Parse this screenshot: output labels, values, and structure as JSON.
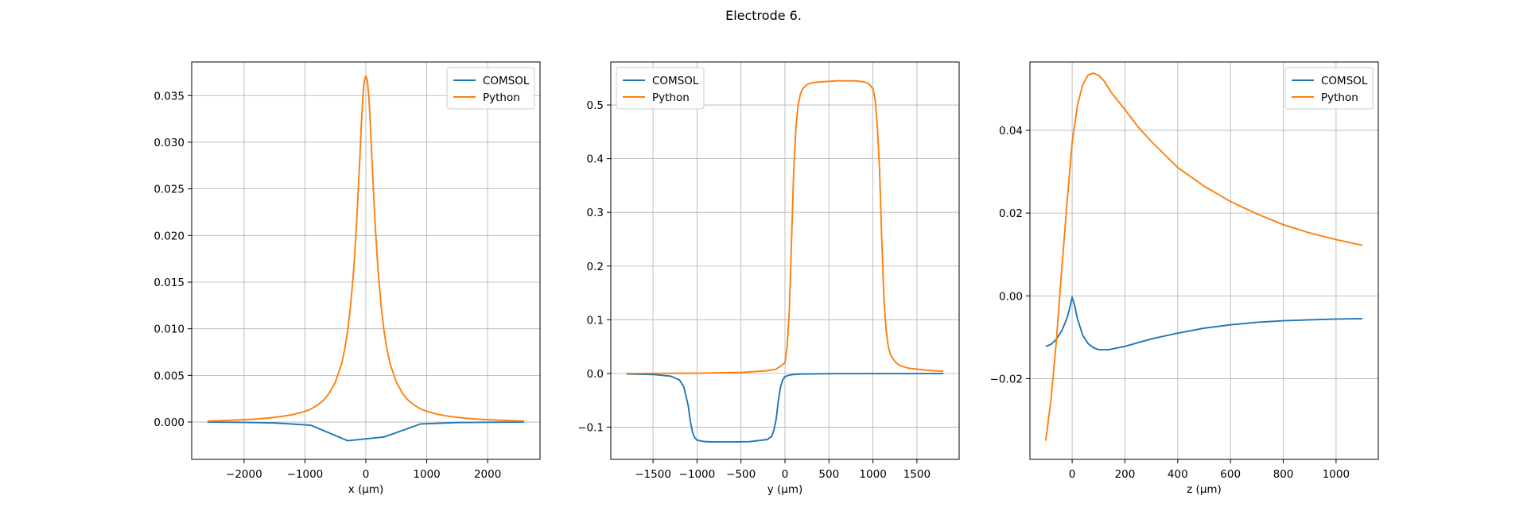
{
  "figure": {
    "title": "Electrode 6."
  },
  "chart_data": [
    {
      "type": "line",
      "xlabel": "x (µm)",
      "ylabel": "",
      "xlim": [
        -2860,
        2860
      ],
      "ylim": [
        -0.004,
        0.0386
      ],
      "xticks": [
        -2000,
        -1000,
        0,
        1000,
        2000
      ],
      "xtick_labels": [
        "−2000",
        "−1000",
        "0",
        "1000",
        "2000"
      ],
      "yticks": [
        0.0,
        0.005,
        0.01,
        0.015,
        0.02,
        0.025,
        0.03,
        0.035
      ],
      "ytick_labels": [
        "0.000",
        "0.005",
        "0.010",
        "0.015",
        "0.020",
        "0.025",
        "0.030",
        "0.035"
      ],
      "grid": true,
      "legend_position": "upper-right",
      "series": [
        {
          "name": "COMSOL",
          "color": "#1f77b4",
          "x": [
            -2600,
            -2000,
            -1500,
            -1000,
            -900,
            -300,
            300,
            900,
            1500,
            2000,
            2600
          ],
          "y": [
            0.0,
            -3e-05,
            -0.0001,
            -0.0003,
            -0.00035,
            -0.002,
            -0.0016,
            -0.0002,
            -5e-05,
            -2e-05,
            0.0
          ]
        },
        {
          "name": "Python",
          "color": "#ff7f0e",
          "x": [
            -2600,
            -2400,
            -2200,
            -2000,
            -1800,
            -1600,
            -1400,
            -1200,
            -1000,
            -900,
            -800,
            -700,
            -600,
            -500,
            -400,
            -350,
            -300,
            -250,
            -200,
            -150,
            -100,
            -75,
            -50,
            -25,
            0,
            25,
            50,
            75,
            100,
            150,
            200,
            250,
            300,
            350,
            400,
            500,
            600,
            700,
            800,
            900,
            1000,
            1200,
            1400,
            1600,
            1800,
            2000,
            2200,
            2400,
            2600
          ],
          "y": [
            0.0001,
            0.00015,
            0.0002,
            0.00025,
            0.00033,
            0.00043,
            0.00058,
            0.0008,
            0.00115,
            0.0014,
            0.0018,
            0.0023,
            0.0031,
            0.0043,
            0.0062,
            0.0077,
            0.0097,
            0.0125,
            0.0163,
            0.0215,
            0.0281,
            0.0318,
            0.0348,
            0.0366,
            0.0371,
            0.0366,
            0.0348,
            0.0318,
            0.0281,
            0.0215,
            0.0163,
            0.0125,
            0.0097,
            0.0077,
            0.0062,
            0.0043,
            0.0031,
            0.0023,
            0.0018,
            0.0014,
            0.00115,
            0.0008,
            0.00058,
            0.00043,
            0.00033,
            0.00025,
            0.0002,
            0.00015,
            0.0001
          ]
        }
      ]
    },
    {
      "type": "line",
      "xlabel": "y (µm)",
      "ylabel": "",
      "xlim": [
        -1980,
        1980
      ],
      "ylim": [
        -0.16,
        0.58
      ],
      "xticks": [
        -1500,
        -1000,
        -500,
        0,
        500,
        1000,
        1500
      ],
      "xtick_labels": [
        "−1500",
        "−1000",
        "−500",
        "0",
        "500",
        "1000",
        "1500"
      ],
      "yticks": [
        -0.1,
        0.0,
        0.1,
        0.2,
        0.3,
        0.4,
        0.5
      ],
      "ytick_labels": [
        "−0.1",
        "0.0",
        "0.1",
        "0.2",
        "0.3",
        "0.4",
        "0.5"
      ],
      "grid": true,
      "legend_position": "upper-left",
      "series": [
        {
          "name": "COMSOL",
          "color": "#1f77b4",
          "x": [
            -1800,
            -1500,
            -1300,
            -1200,
            -1150,
            -1100,
            -1075,
            -1050,
            -1025,
            -1000,
            -950,
            -900,
            -800,
            -600,
            -400,
            -200,
            -150,
            -125,
            -100,
            -75,
            -50,
            -25,
            0,
            50,
            100,
            200,
            500,
            1000,
            1500,
            1800
          ],
          "y": [
            -0.001,
            -0.002,
            -0.005,
            -0.012,
            -0.025,
            -0.06,
            -0.09,
            -0.11,
            -0.12,
            -0.124,
            -0.126,
            -0.127,
            -0.1275,
            -0.1275,
            -0.127,
            -0.123,
            -0.117,
            -0.105,
            -0.085,
            -0.05,
            -0.025,
            -0.012,
            -0.006,
            -0.003,
            -0.002,
            -0.001,
            -0.0005,
            -0.0003,
            -0.0002,
            -0.0001
          ]
        },
        {
          "name": "Python",
          "color": "#ff7f0e",
          "x": [
            -1800,
            -1000,
            -500,
            -200,
            -100,
            0,
            25,
            50,
            75,
            100,
            125,
            150,
            175,
            200,
            250,
            300,
            400,
            500,
            600,
            700,
            800,
            900,
            950,
            1000,
            1025,
            1050,
            1075,
            1100,
            1125,
            1150,
            1175,
            1200,
            1250,
            1300,
            1400,
            1500,
            1600,
            1700,
            1800
          ],
          "y": [
            0.0,
            0.0005,
            0.002,
            0.005,
            0.008,
            0.02,
            0.05,
            0.12,
            0.25,
            0.38,
            0.46,
            0.5,
            0.52,
            0.53,
            0.538,
            0.541,
            0.543,
            0.544,
            0.545,
            0.545,
            0.545,
            0.543,
            0.54,
            0.53,
            0.51,
            0.46,
            0.38,
            0.25,
            0.14,
            0.08,
            0.05,
            0.035,
            0.022,
            0.015,
            0.01,
            0.008,
            0.006,
            0.005,
            0.004
          ]
        }
      ]
    },
    {
      "type": "line",
      "xlabel": "z (µm)",
      "ylabel": "",
      "xlim": [
        -160,
        1160
      ],
      "ylim": [
        -0.0395,
        0.0565
      ],
      "xticks": [
        0,
        200,
        400,
        600,
        800,
        1000
      ],
      "xtick_labels": [
        "0",
        "200",
        "400",
        "600",
        "800",
        "1000"
      ],
      "yticks": [
        -0.02,
        0.0,
        0.02,
        0.04
      ],
      "ytick_labels": [
        "−0.02",
        "0.00",
        "0.02",
        "0.04"
      ],
      "grid": true,
      "legend_position": "upper-right",
      "series": [
        {
          "name": "COMSOL",
          "color": "#1f77b4",
          "x": [
            -100,
            -80,
            -60,
            -40,
            -20,
            -10,
            0,
            10,
            20,
            40,
            60,
            80,
            100,
            140,
            200,
            300,
            400,
            500,
            600,
            700,
            800,
            900,
            1000,
            1100
          ],
          "y": [
            -0.0122,
            -0.0117,
            -0.0105,
            -0.0085,
            -0.0055,
            -0.0032,
            -0.0003,
            -0.0025,
            -0.0055,
            -0.0095,
            -0.0115,
            -0.0125,
            -0.013,
            -0.013,
            -0.0122,
            -0.0104,
            -0.009,
            -0.0078,
            -0.007,
            -0.0064,
            -0.006,
            -0.0058,
            -0.0056,
            -0.0055
          ]
        },
        {
          "name": "Python",
          "color": "#ff7f0e",
          "x": [
            -100,
            -80,
            -60,
            -40,
            -20,
            0,
            20,
            40,
            60,
            80,
            100,
            120,
            150,
            200,
            250,
            300,
            400,
            500,
            600,
            700,
            800,
            900,
            1000,
            1100
          ],
          "y": [
            -0.035,
            -0.025,
            -0.011,
            0.006,
            0.022,
            0.037,
            0.046,
            0.051,
            0.0533,
            0.0538,
            0.0533,
            0.052,
            0.049,
            0.045,
            0.0408,
            0.0373,
            0.031,
            0.0265,
            0.0228,
            0.0198,
            0.0172,
            0.0152,
            0.0136,
            0.0122
          ]
        }
      ]
    }
  ]
}
